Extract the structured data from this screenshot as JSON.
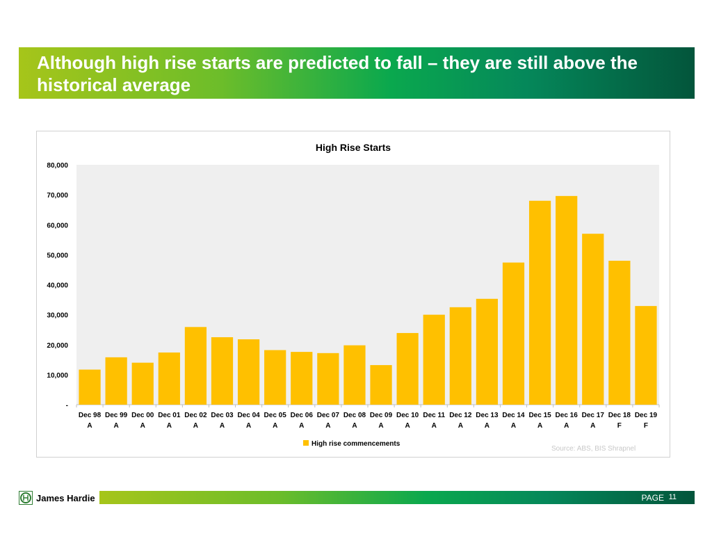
{
  "slide": {
    "title": "Although high rise starts are predicted to fall – they are still above the historical average",
    "source": "Source: ABS, BIS Shrapnel",
    "page_label": "PAGE",
    "page_number": "11",
    "logo_text": "James Hardie"
  },
  "colors": {
    "bar": "#ffc000",
    "plot_bg": "#efefef"
  },
  "chart_data": {
    "type": "bar",
    "title": "High Rise Starts",
    "xlabel": "",
    "ylabel": "",
    "categories": [
      [
        "Dec 98",
        "A"
      ],
      [
        "Dec 99",
        "A"
      ],
      [
        "Dec 00",
        "A"
      ],
      [
        "Dec 01",
        "A"
      ],
      [
        "Dec 02",
        "A"
      ],
      [
        "Dec 03",
        "A"
      ],
      [
        "Dec 04",
        "A"
      ],
      [
        "Dec 05",
        "A"
      ],
      [
        "Dec 06",
        "A"
      ],
      [
        "Dec 07",
        "A"
      ],
      [
        "Dec 08",
        "A"
      ],
      [
        "Dec 09",
        "A"
      ],
      [
        "Dec 10",
        "A"
      ],
      [
        "Dec 11",
        "A"
      ],
      [
        "Dec 12",
        "A"
      ],
      [
        "Dec 13",
        "A"
      ],
      [
        "Dec 14",
        "A"
      ],
      [
        "Dec 15",
        "A"
      ],
      [
        "Dec 16",
        "A"
      ],
      [
        "Dec 17",
        "A"
      ],
      [
        "Dec 18",
        "F"
      ],
      [
        "Dec 19",
        "F"
      ]
    ],
    "series": [
      {
        "name": "High rise commencements",
        "values": [
          11700,
          15800,
          14000,
          17400,
          25900,
          22500,
          21800,
          18200,
          17600,
          17200,
          19800,
          13200,
          23900,
          30000,
          32500,
          35300,
          47400,
          68000,
          69600,
          57000,
          48000,
          32900
        ]
      }
    ],
    "ylim": [
      0,
      80000
    ],
    "yticks": [
      0,
      10000,
      20000,
      30000,
      40000,
      50000,
      60000,
      70000,
      80000
    ],
    "ytick_labels": [
      "-",
      "10,000",
      "20,000",
      "30,000",
      "40,000",
      "50,000",
      "60,000",
      "70,000",
      "80,000"
    ],
    "legend_position": "bottom-center",
    "grid": false
  }
}
